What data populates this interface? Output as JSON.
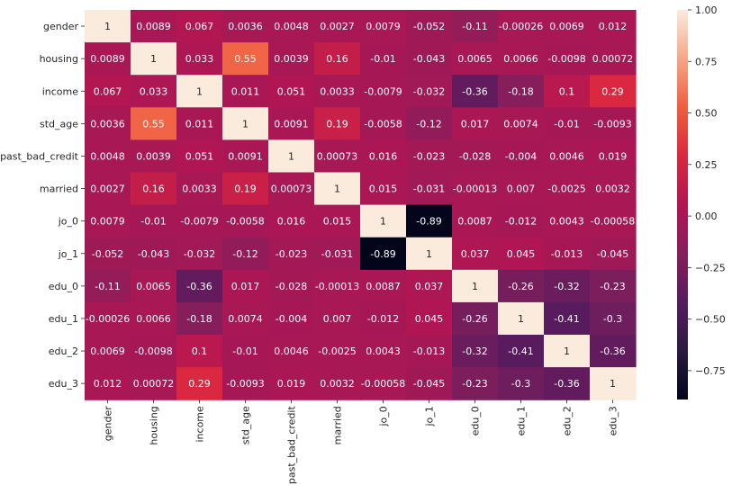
{
  "chart_data": {
    "type": "heatmap",
    "title": "",
    "xlabel": "",
    "ylabel": "",
    "rows": [
      "gender",
      "housing",
      "income",
      "std_age",
      "past_bad_credit",
      "married",
      "jo_0",
      "jo_1",
      "edu_0",
      "edu_1",
      "edu_2",
      "edu_3"
    ],
    "columns": [
      "gender",
      "housing",
      "income",
      "std_age",
      "past_bad_credit",
      "married",
      "jo_0",
      "jo_1",
      "edu_0",
      "edu_1",
      "edu_2",
      "edu_3"
    ],
    "values": [
      [
        1,
        0.0089,
        0.067,
        0.0036,
        0.0048,
        0.0027,
        0.0079,
        -0.052,
        -0.11,
        -0.00026,
        0.0069,
        0.012
      ],
      [
        0.0089,
        1,
        0.033,
        0.55,
        0.0039,
        0.16,
        -0.01,
        -0.043,
        0.0065,
        0.0066,
        -0.0098,
        0.00072
      ],
      [
        0.067,
        0.033,
        1,
        0.011,
        0.051,
        0.0033,
        -0.0079,
        -0.032,
        -0.36,
        -0.18,
        0.1,
        0.29
      ],
      [
        0.0036,
        0.55,
        0.011,
        1,
        0.0091,
        0.19,
        -0.0058,
        -0.12,
        0.017,
        0.0074,
        -0.01,
        -0.0093
      ],
      [
        0.0048,
        0.0039,
        0.051,
        0.0091,
        1,
        0.00073,
        0.016,
        -0.023,
        -0.028,
        -0.004,
        0.0046,
        0.019
      ],
      [
        0.0027,
        0.16,
        0.0033,
        0.19,
        0.00073,
        1,
        0.015,
        -0.031,
        -0.00013,
        0.007,
        -0.0025,
        0.0032
      ],
      [
        0.0079,
        -0.01,
        -0.0079,
        -0.0058,
        0.016,
        0.015,
        1,
        -0.89,
        0.0087,
        -0.012,
        0.0043,
        -0.00058
      ],
      [
        -0.052,
        -0.043,
        -0.032,
        -0.12,
        -0.023,
        -0.031,
        -0.89,
        1,
        0.037,
        0.045,
        -0.013,
        -0.045
      ],
      [
        -0.11,
        0.0065,
        -0.36,
        0.017,
        -0.028,
        -0.00013,
        0.0087,
        0.037,
        1,
        -0.26,
        -0.32,
        -0.23
      ],
      [
        -0.00026,
        0.0066,
        -0.18,
        0.0074,
        -0.004,
        0.007,
        -0.012,
        0.045,
        -0.26,
        1,
        -0.41,
        -0.3
      ],
      [
        0.0069,
        -0.0098,
        0.1,
        -0.01,
        0.0046,
        -0.0025,
        0.0043,
        -0.013,
        -0.32,
        -0.41,
        1,
        -0.36
      ],
      [
        0.012,
        0.00072,
        0.29,
        -0.0093,
        0.019,
        0.0032,
        -0.00058,
        -0.045,
        -0.23,
        -0.3,
        -0.36,
        1
      ]
    ],
    "colormap": "rocket",
    "vmin": -0.89,
    "vmax": 1,
    "colorbar_ticks": [
      1.0,
      0.75,
      0.5,
      0.25,
      0.0,
      -0.25,
      -0.5,
      -0.75
    ],
    "colorbar_tick_labels": [
      "1.00",
      "0.75",
      "0.50",
      "0.25",
      "0.00",
      "−0.25",
      "−0.50",
      "−0.75"
    ],
    "annotated": true,
    "grid": false,
    "legend": "colorbar-right"
  }
}
